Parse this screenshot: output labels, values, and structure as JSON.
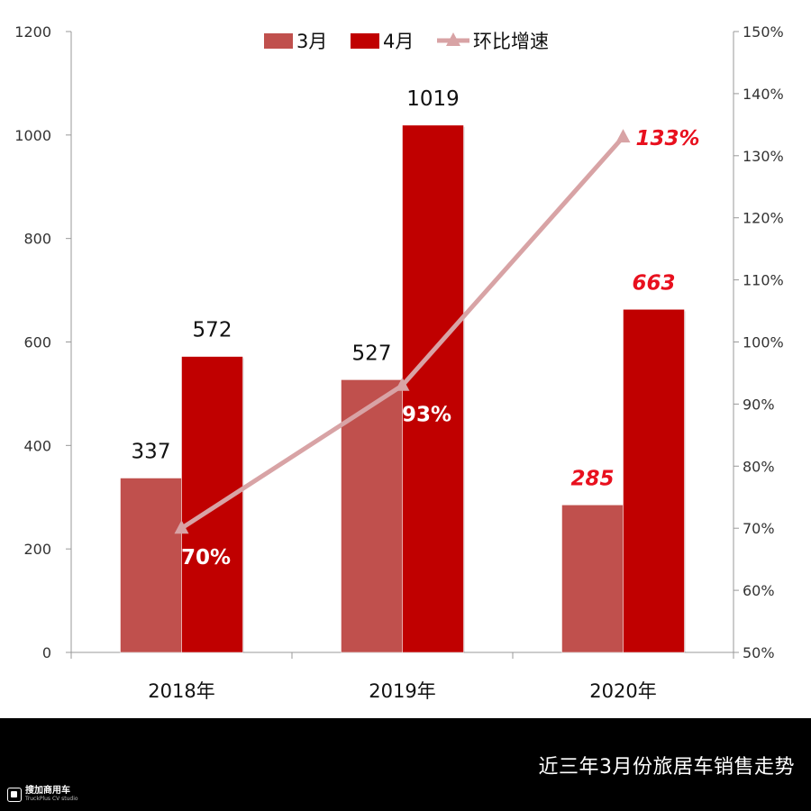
{
  "chart_data": {
    "type": "bar",
    "categories": [
      "2018年",
      "2019年",
      "2020年"
    ],
    "series": [
      {
        "name": "3月",
        "type": "bar",
        "axis": "left",
        "color": "#c0504d",
        "values": [
          337,
          527,
          285
        ],
        "labels": [
          "337",
          "527",
          "285"
        ]
      },
      {
        "name": "4月",
        "type": "bar",
        "axis": "left",
        "color": "#c00000",
        "values": [
          572,
          1019,
          663
        ],
        "labels": [
          "572",
          "1019",
          "663"
        ]
      },
      {
        "name": "环比增速",
        "type": "line",
        "axis": "right",
        "color": "#d8a3a5",
        "values": [
          70,
          93,
          133
        ],
        "labels": [
          "70%",
          "93%",
          "133%"
        ]
      }
    ],
    "y_left": {
      "min": 0,
      "max": 1200,
      "ticks": [
        "0",
        "200",
        "400",
        "600",
        "800",
        "1000",
        "1200"
      ]
    },
    "y_right": {
      "min": 50,
      "max": 150,
      "ticks": [
        "50%",
        "60%",
        "70%",
        "80%",
        "90%",
        "100%",
        "110%",
        "120%",
        "130%",
        "140%",
        "150%"
      ]
    },
    "legend_position": "top-center",
    "highlight_color": "#e8101e",
    "grid": false
  },
  "caption": "近三年3月份旅居车销售走势",
  "brand": {
    "name": "搜加商用车",
    "sub": "TruckPlus CV studio"
  }
}
